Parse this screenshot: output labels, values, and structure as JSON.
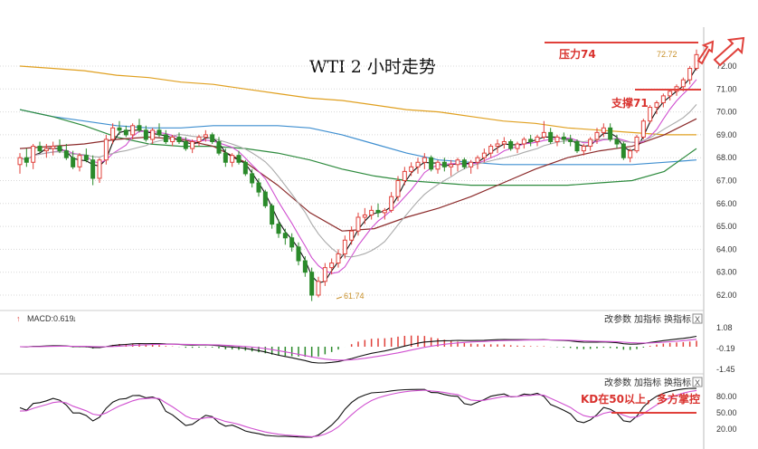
{
  "chart_data": [
    {
      "type": "candlestick",
      "title": "WTI 2 小时走势",
      "ylim": [
        61.5,
        72.4
      ],
      "yticks": [
        "72.00",
        "71.00",
        "70.00",
        "69.00",
        "68.00",
        "67.00",
        "66.00",
        "65.00",
        "64.00",
        "63.00",
        "62.00"
      ],
      "ytick_values": [
        72,
        71,
        70,
        69,
        68,
        67,
        66,
        65,
        64,
        63,
        62
      ],
      "low_label": "61.74",
      "high_label": "72.72",
      "candles_ohlc": [
        [
          67.7,
          68.2,
          67.3,
          68.0
        ],
        [
          68.0,
          68.4,
          67.6,
          67.8
        ],
        [
          67.8,
          68.6,
          67.5,
          68.5
        ],
        [
          68.5,
          68.7,
          68.2,
          68.3
        ],
        [
          68.3,
          68.6,
          68.0,
          68.4
        ],
        [
          68.4,
          68.7,
          68.1,
          68.5
        ],
        [
          68.5,
          68.8,
          68.2,
          68.3
        ],
        [
          68.3,
          68.6,
          67.9,
          68.0
        ],
        [
          68.0,
          68.3,
          67.5,
          67.6
        ],
        [
          67.6,
          68.2,
          67.4,
          68.1
        ],
        [
          68.1,
          68.4,
          67.8,
          67.9
        ],
        [
          67.9,
          68.1,
          66.8,
          67.1
        ],
        [
          67.1,
          68.0,
          66.9,
          67.9
        ],
        [
          67.9,
          69.0,
          67.7,
          68.8
        ],
        [
          68.8,
          69.5,
          68.6,
          69.3
        ],
        [
          69.3,
          69.6,
          69.0,
          69.2
        ],
        [
          69.2,
          69.4,
          68.9,
          69.0
        ],
        [
          69.0,
          69.5,
          68.8,
          69.4
        ],
        [
          69.4,
          69.7,
          69.1,
          69.2
        ],
        [
          69.2,
          69.4,
          68.7,
          68.8
        ],
        [
          68.8,
          69.3,
          68.6,
          69.2
        ],
        [
          69.2,
          69.5,
          68.9,
          69.0
        ],
        [
          69.0,
          69.2,
          68.6,
          68.7
        ],
        [
          68.7,
          69.0,
          68.5,
          68.9
        ],
        [
          68.9,
          69.1,
          68.6,
          68.7
        ],
        [
          68.7,
          68.9,
          68.3,
          68.4
        ],
        [
          68.4,
          68.8,
          68.2,
          68.7
        ],
        [
          68.7,
          69.0,
          68.5,
          68.9
        ],
        [
          68.9,
          69.2,
          68.7,
          69.0
        ],
        [
          69.0,
          69.1,
          68.6,
          68.7
        ],
        [
          68.7,
          68.9,
          68.1,
          68.2
        ],
        [
          68.2,
          68.4,
          67.6,
          67.8
        ],
        [
          67.8,
          68.2,
          67.6,
          68.1
        ],
        [
          68.1,
          68.3,
          67.7,
          67.8
        ],
        [
          67.8,
          67.9,
          67.2,
          67.3
        ],
        [
          67.3,
          67.5,
          66.7,
          66.9
        ],
        [
          66.9,
          67.1,
          66.3,
          66.5
        ],
        [
          66.5,
          66.6,
          65.8,
          65.9
        ],
        [
          65.9,
          66.0,
          64.9,
          65.1
        ],
        [
          65.1,
          65.3,
          64.5,
          64.7
        ],
        [
          64.7,
          64.9,
          64.2,
          64.5
        ],
        [
          64.5,
          64.7,
          63.9,
          64.1
        ],
        [
          64.1,
          64.3,
          63.3,
          63.5
        ],
        [
          63.5,
          63.7,
          62.8,
          63.0
        ],
        [
          63.0,
          63.2,
          61.74,
          62.0
        ],
        [
          62.0,
          62.8,
          61.9,
          62.6
        ],
        [
          62.6,
          63.4,
          62.4,
          63.2
        ],
        [
          63.2,
          63.6,
          62.9,
          63.4
        ],
        [
          63.4,
          64.0,
          63.2,
          63.8
        ],
        [
          63.8,
          64.6,
          63.6,
          64.4
        ],
        [
          64.4,
          65.0,
          64.2,
          64.8
        ],
        [
          64.8,
          65.6,
          64.6,
          65.4
        ],
        [
          65.4,
          65.8,
          65.1,
          65.5
        ],
        [
          65.5,
          65.9,
          65.3,
          65.7
        ],
        [
          65.7,
          66.0,
          65.4,
          65.6
        ],
        [
          65.6,
          65.8,
          65.3,
          65.7
        ],
        [
          65.7,
          66.5,
          65.6,
          66.3
        ],
        [
          66.3,
          67.2,
          66.1,
          67.0
        ],
        [
          67.0,
          67.6,
          66.8,
          67.4
        ],
        [
          67.4,
          67.8,
          67.2,
          67.6
        ],
        [
          67.6,
          68.0,
          67.3,
          67.8
        ],
        [
          67.8,
          68.2,
          67.5,
          68.0
        ],
        [
          68.0,
          68.1,
          67.4,
          67.5
        ],
        [
          67.5,
          67.9,
          67.3,
          67.8
        ],
        [
          67.8,
          68.0,
          67.4,
          67.6
        ],
        [
          67.6,
          67.9,
          67.2,
          67.7
        ],
        [
          67.7,
          68.0,
          67.4,
          67.9
        ],
        [
          67.9,
          68.0,
          67.5,
          67.6
        ],
        [
          67.6,
          67.9,
          67.3,
          67.8
        ],
        [
          67.8,
          68.1,
          67.5,
          68.0
        ],
        [
          68.0,
          68.4,
          67.8,
          68.2
        ],
        [
          68.2,
          68.6,
          68.0,
          68.5
        ],
        [
          68.5,
          68.8,
          68.2,
          68.6
        ],
        [
          68.6,
          68.9,
          68.4,
          68.7
        ],
        [
          68.7,
          68.8,
          68.3,
          68.4
        ],
        [
          68.4,
          68.7,
          68.2,
          68.6
        ],
        [
          68.6,
          68.9,
          68.4,
          68.8
        ],
        [
          68.8,
          69.0,
          68.5,
          68.7
        ],
        [
          68.7,
          69.0,
          68.5,
          68.9
        ],
        [
          68.9,
          69.6,
          68.8,
          69.1
        ],
        [
          69.1,
          69.3,
          68.6,
          68.7
        ],
        [
          68.7,
          69.0,
          68.5,
          68.9
        ],
        [
          68.9,
          69.1,
          68.6,
          68.8
        ],
        [
          68.8,
          69.0,
          68.5,
          68.7
        ],
        [
          68.7,
          68.8,
          68.2,
          68.3
        ],
        [
          68.3,
          68.6,
          68.1,
          68.5
        ],
        [
          68.5,
          68.9,
          68.3,
          68.8
        ],
        [
          68.8,
          69.3,
          68.6,
          69.1
        ],
        [
          69.1,
          69.5,
          68.9,
          69.3
        ],
        [
          69.3,
          69.5,
          68.7,
          68.8
        ],
        [
          68.8,
          69.0,
          68.4,
          68.6
        ],
        [
          68.6,
          68.7,
          67.9,
          68.0
        ],
        [
          68.0,
          68.4,
          67.8,
          68.3
        ],
        [
          68.3,
          69.0,
          68.2,
          68.9
        ],
        [
          68.9,
          69.7,
          68.8,
          69.6
        ],
        [
          69.6,
          70.3,
          69.5,
          70.2
        ],
        [
          70.2,
          70.5,
          69.9,
          70.4
        ],
        [
          70.4,
          70.8,
          70.2,
          70.7
        ],
        [
          70.7,
          71.0,
          70.5,
          70.9
        ],
        [
          70.9,
          71.2,
          70.7,
          71.1
        ],
        [
          71.1,
          71.5,
          70.9,
          71.4
        ],
        [
          71.4,
          72.0,
          71.2,
          71.9
        ],
        [
          71.9,
          72.72,
          71.8,
          72.5
        ]
      ],
      "ma_lines": {
        "ma_orange": [
          72.0,
          71.9,
          71.8,
          71.6,
          71.5,
          71.3,
          71.2,
          71.0,
          70.8,
          70.6,
          70.5,
          70.3,
          70.1,
          70.0,
          69.8,
          69.6,
          69.5,
          69.3,
          69.2,
          69.1,
          69.0,
          69.0
        ],
        "ma_blue": [
          70.1,
          69.8,
          69.6,
          69.4,
          69.3,
          69.3,
          69.4,
          69.4,
          69.4,
          69.3,
          69.0,
          68.6,
          68.2,
          67.9,
          67.8,
          67.7,
          67.7,
          67.7,
          67.7,
          67.7,
          67.8,
          67.9
        ],
        "ma_green": [
          70.1,
          69.8,
          69.4,
          68.9,
          68.6,
          68.5,
          68.5,
          68.4,
          68.2,
          67.9,
          67.5,
          67.2,
          67.0,
          66.9,
          66.8,
          66.8,
          66.8,
          66.8,
          66.9,
          67.0,
          67.4,
          68.4
        ],
        "ma_darkred": [
          68.4,
          68.5,
          68.6,
          68.8,
          68.9,
          68.8,
          68.5,
          67.8,
          66.8,
          65.6,
          64.8,
          64.9,
          65.4,
          65.8,
          66.3,
          66.9,
          67.5,
          68.0,
          68.3,
          68.5,
          69.0,
          69.7
        ]
      },
      "macd": {
        "label": "MACD:0.619",
        "yticks": [
          "1.08",
          "-0.19",
          "-1.45"
        ]
      },
      "kd": {
        "yticks": [
          "80.00",
          "50.00",
          "20.00"
        ]
      }
    }
  ],
  "annotations": {
    "resistance": "压力74",
    "support": "支撑71",
    "kd_note": "KD在50以上，多方掌控"
  },
  "toolbar": {
    "change_params": "改参数",
    "add_indicator": "加指标",
    "swap_indicator": "换指标",
    "close": "X"
  },
  "colors": {
    "up": "#e0403a",
    "down": "#2a8a2a",
    "ma_orange": "#e0a020",
    "ma_blue": "#3f8fd0",
    "ma_green": "#2e8b3e",
    "ma_darkred": "#8b2a2a",
    "ma_black": "#111111",
    "ma_magenta": "#d050d0",
    "ma_gray": "#aaaaaa",
    "annotation": "#d9322e"
  }
}
